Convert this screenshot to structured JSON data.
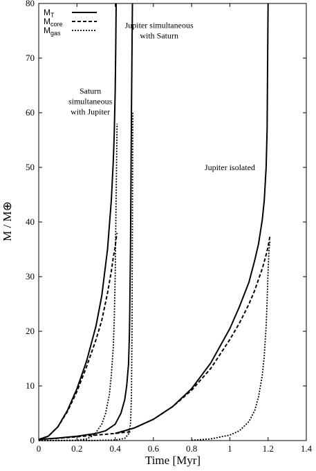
{
  "chart_data": {
    "type": "line",
    "title": "",
    "xlabel": "Time [Myr]",
    "ylabel": "M / M⊕",
    "xlim": [
      0,
      1.4
    ],
    "ylim": [
      0,
      80
    ],
    "xticks": [
      0,
      0.2,
      0.4,
      0.6,
      0.8,
      1,
      1.2,
      1.4
    ],
    "xtick_labels": [
      "0",
      "0.2",
      "0.4",
      "0.6",
      "0.8",
      "1",
      "1.2",
      "1.4"
    ],
    "yticks": [
      0,
      10,
      20,
      30,
      40,
      50,
      60,
      70,
      80
    ],
    "ytick_labels": [
      "0",
      "10",
      "20",
      "30",
      "40",
      "50",
      "60",
      "70",
      "80"
    ],
    "grid": false,
    "legend": {
      "position": "top-left",
      "entries": [
        {
          "base": "M",
          "sub": "T",
          "style": "solid"
        },
        {
          "base": "M",
          "sub": "core",
          "style": "dashed"
        },
        {
          "base": "M",
          "sub": "gas",
          "style": "dotted"
        }
      ]
    },
    "annotations": [
      {
        "lines": [
          "Saturn",
          "simultaneous",
          "with Jupiter"
        ],
        "x": 0.27,
        "y": 63.5
      },
      {
        "lines": [
          "Jupiter simultaneous",
          "with Saturn"
        ],
        "x": 0.63,
        "y": 75.5
      },
      {
        "lines": [
          "Jupiter isolated"
        ],
        "x": 1.0,
        "y": 49.5
      }
    ],
    "series": [
      {
        "group": "Saturn simultaneous with Jupiter",
        "quantity": "total",
        "style": "solid",
        "x": [
          0,
          0.05,
          0.1,
          0.15,
          0.2,
          0.25,
          0.3,
          0.33,
          0.36,
          0.38,
          0.39,
          0.395,
          0.4,
          0.403,
          0.405
        ],
        "y": [
          0.2,
          0.8,
          2.5,
          5.5,
          9.5,
          14.5,
          21,
          26.5,
          35,
          44,
          51,
          56,
          64,
          72,
          80
        ]
      },
      {
        "group": "Saturn simultaneous with Jupiter",
        "quantity": "core",
        "style": "dashed",
        "x": [
          0,
          0.05,
          0.1,
          0.15,
          0.2,
          0.25,
          0.3,
          0.33,
          0.36,
          0.38,
          0.39,
          0.4,
          0.405,
          0.41
        ],
        "y": [
          0.2,
          0.8,
          2.5,
          5.3,
          9,
          13.5,
          18.5,
          22,
          27,
          31,
          33.5,
          35.5,
          37,
          38
        ]
      },
      {
        "group": "Saturn simultaneous with Jupiter",
        "quantity": "gas",
        "style": "dotted",
        "x": [
          0,
          0.2,
          0.25,
          0.28,
          0.3,
          0.33,
          0.35,
          0.37,
          0.38,
          0.39,
          0.395,
          0.4,
          0.405,
          0.41
        ],
        "y": [
          0,
          0.05,
          0.3,
          0.8,
          1.5,
          3,
          5,
          8.5,
          12,
          17,
          22,
          30,
          45,
          58
        ]
      },
      {
        "group": "Jupiter simultaneous with Saturn",
        "quantity": "total",
        "style": "solid",
        "x": [
          0,
          0.1,
          0.2,
          0.3,
          0.35,
          0.4,
          0.43,
          0.45,
          0.46,
          0.47,
          0.475,
          0.48,
          0.485,
          0.49
        ],
        "y": [
          0.2,
          0.45,
          0.8,
          1.3,
          1.8,
          3,
          5,
          7.5,
          10,
          14,
          20,
          35,
          60,
          80
        ]
      },
      {
        "group": "Jupiter simultaneous with Saturn",
        "quantity": "core",
        "style": "dashed",
        "x": [
          0,
          0.1,
          0.2,
          0.3,
          0.4,
          0.45,
          0.485,
          0.49
        ],
        "y": [
          0.2,
          0.4,
          0.7,
          1.0,
          1.3,
          1.5,
          1.6,
          1.7
        ]
      },
      {
        "group": "Jupiter simultaneous with Saturn",
        "quantity": "gas",
        "style": "dotted",
        "x": [
          0,
          0.3,
          0.4,
          0.45,
          0.47,
          0.48,
          0.485,
          0.488,
          0.49,
          0.492
        ],
        "y": [
          0,
          0.02,
          0.1,
          0.4,
          1.2,
          3,
          8,
          20,
          40,
          60
        ]
      },
      {
        "group": "Jupiter isolated",
        "quantity": "total",
        "style": "solid",
        "x": [
          0.4,
          0.5,
          0.6,
          0.7,
          0.8,
          0.9,
          1.0,
          1.05,
          1.1,
          1.13,
          1.15,
          1.17,
          1.18,
          1.19,
          1.195,
          1.2
        ],
        "y": [
          1.3,
          2.3,
          3.9,
          6.2,
          9.5,
          14.2,
          20.5,
          24.5,
          29,
          33,
          36,
          40.5,
          44,
          50,
          57,
          80
        ]
      },
      {
        "group": "Jupiter isolated",
        "quantity": "core",
        "style": "dashed",
        "x": [
          0.4,
          0.5,
          0.6,
          0.7,
          0.8,
          0.9,
          1.0,
          1.05,
          1.1,
          1.13,
          1.15,
          1.17,
          1.19,
          1.2,
          1.21
        ],
        "y": [
          1.3,
          2.3,
          3.9,
          6.2,
          9.2,
          13.2,
          18.5,
          21.5,
          25,
          27.5,
          29.5,
          31.5,
          34,
          35.5,
          37.5
        ]
      },
      {
        "group": "Jupiter isolated",
        "quantity": "gas",
        "style": "dotted",
        "x": [
          0.8,
          0.9,
          1.0,
          1.05,
          1.1,
          1.13,
          1.15,
          1.17,
          1.18,
          1.19,
          1.195,
          1.2,
          1.205,
          1.21
        ],
        "y": [
          0.05,
          0.3,
          1.0,
          1.8,
          3.5,
          5.5,
          8,
          12,
          15.5,
          21,
          25.5,
          31,
          35,
          36.5
        ]
      }
    ]
  }
}
